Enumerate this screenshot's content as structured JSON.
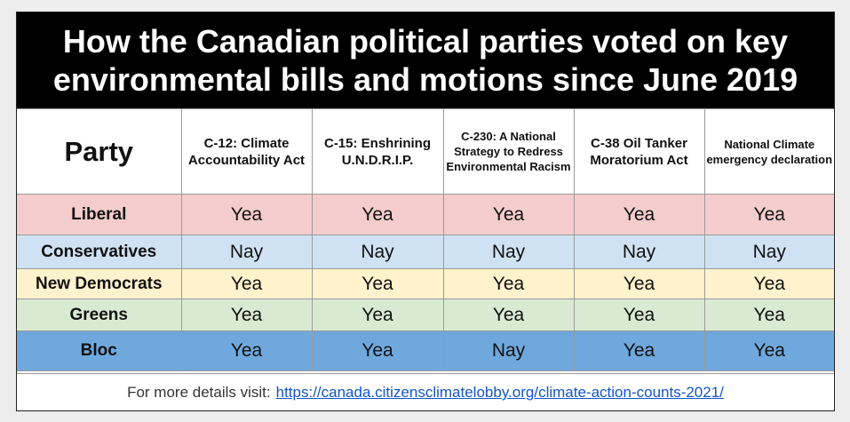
{
  "title": {
    "line1": "How the Canadian political parties voted on key",
    "line2": "environmental bills and motions since June 2019"
  },
  "table": {
    "party_header": "Party",
    "bills": [
      "C-12: Climate Accountability Act",
      "C-15: Enshrining U.N.D.R.I.P.",
      "C-230: A National Strategy to Redress Environmental Racism",
      "C-38 Oil Tanker Moratorium Act",
      "National Climate emergency declaration"
    ],
    "rows": [
      {
        "party": "Liberal",
        "votes": [
          "Yea",
          "Yea",
          "Yea",
          "Yea",
          "Yea"
        ]
      },
      {
        "party": "Conservatives",
        "votes": [
          "Nay",
          "Nay",
          "Nay",
          "Nay",
          "Nay"
        ]
      },
      {
        "party": "New Democrats",
        "votes": [
          "Yea",
          "Yea",
          "Yea",
          "Yea",
          "Yea"
        ]
      },
      {
        "party": "Greens",
        "votes": [
          "Yea",
          "Yea",
          "Yea",
          "Yea",
          "Yea"
        ]
      },
      {
        "party": "Bloc",
        "votes": [
          "Yea",
          "Yea",
          "Nay",
          "Yea",
          "Yea"
        ]
      }
    ]
  },
  "footer": {
    "text": "For more details visit:",
    "link": "https://canada.citizensclimatelobby.org/climate-action-counts-2021/"
  },
  "colors": {
    "liberal": "#f4cccc",
    "conservatives": "#cfe2f3",
    "new_democrats": "#fff2cc",
    "greens": "#d9ead3",
    "bloc": "#6fa8dc"
  }
}
